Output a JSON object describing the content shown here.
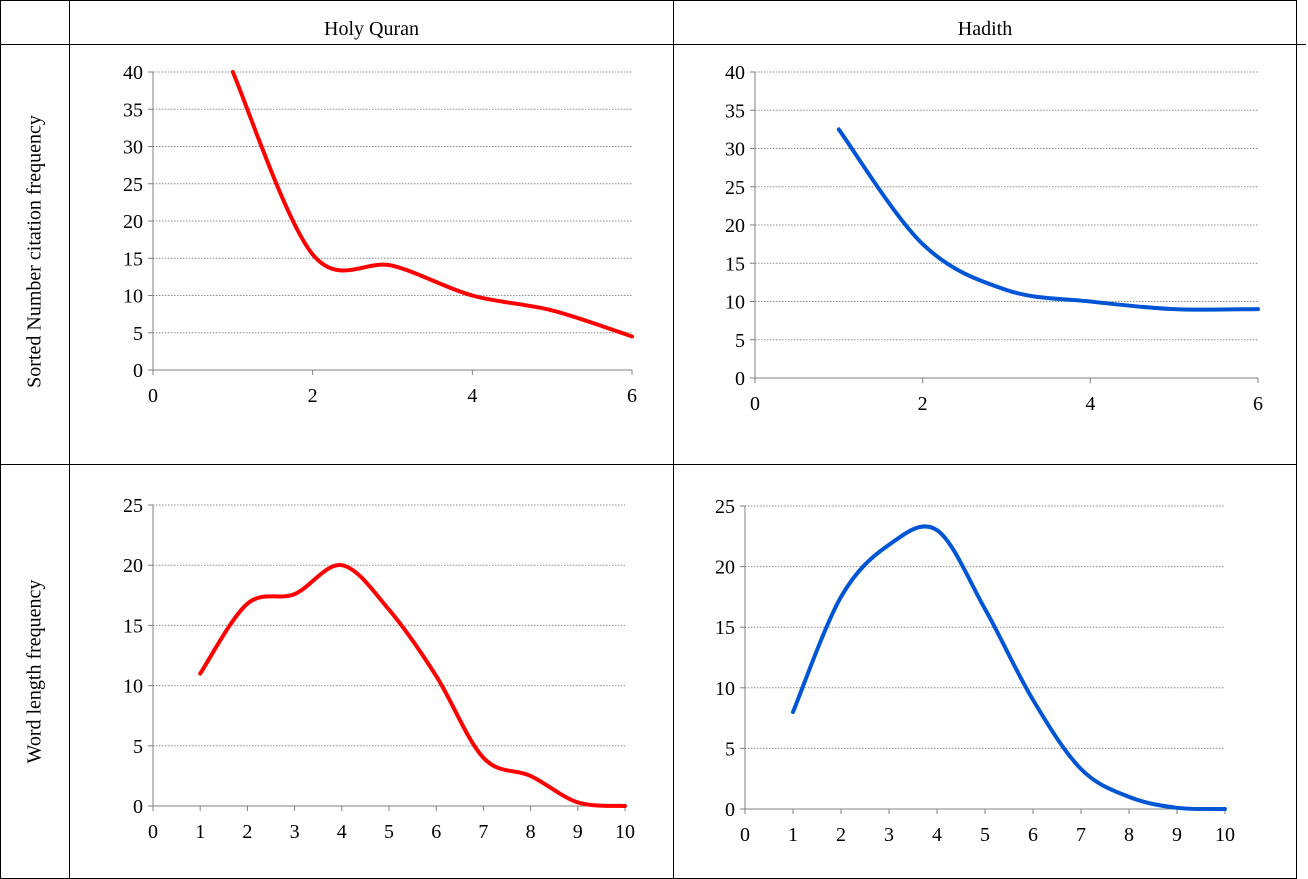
{
  "columns": [
    {
      "label": "Holy Quran"
    },
    {
      "label": "Hadith"
    }
  ],
  "rows": [
    {
      "label": "Sorted Number citation frequency"
    },
    {
      "label": "Word length frequency"
    }
  ],
  "colors": {
    "quran": "#ff0000",
    "hadith": "#0055d4",
    "grid": "#8c8c8c"
  },
  "chart_data": [
    {
      "id": "quran-citation",
      "type": "line",
      "title": "",
      "xlabel": "",
      "ylabel": "",
      "xlim": [
        0,
        6
      ],
      "ylim": [
        0,
        40
      ],
      "xticks": [
        0,
        2,
        4,
        6
      ],
      "yticks": [
        0,
        5,
        10,
        15,
        20,
        25,
        30,
        35,
        40
      ],
      "grid": true,
      "legend": "none",
      "series": [
        {
          "color": "#ff0000",
          "x": [
            1,
            2,
            3,
            4,
            5,
            6
          ],
          "y": [
            40,
            15.5,
            14,
            10,
            8,
            4.5
          ]
        }
      ]
    },
    {
      "id": "hadith-citation",
      "type": "line",
      "title": "",
      "xlabel": "",
      "ylabel": "",
      "xlim": [
        0,
        6
      ],
      "ylim": [
        0,
        40
      ],
      "xticks": [
        0,
        2,
        4,
        6
      ],
      "yticks": [
        0,
        5,
        10,
        15,
        20,
        25,
        30,
        35,
        40
      ],
      "grid": true,
      "legend": "none",
      "series": [
        {
          "color": "#0055d4",
          "x": [
            1,
            2,
            3,
            4,
            5,
            6
          ],
          "y": [
            32.5,
            17.5,
            11.5,
            10,
            9,
            9
          ]
        }
      ]
    },
    {
      "id": "quran-wordlength",
      "type": "line",
      "title": "",
      "xlabel": "",
      "ylabel": "",
      "xlim": [
        0,
        10
      ],
      "ylim": [
        0,
        25
      ],
      "xticks": [
        0,
        1,
        2,
        3,
        4,
        5,
        6,
        7,
        8,
        9,
        10
      ],
      "yticks": [
        0,
        5,
        10,
        15,
        20,
        25
      ],
      "grid": true,
      "legend": "none",
      "series": [
        {
          "color": "#ff0000",
          "x": [
            1,
            2,
            3,
            4,
            5,
            6,
            7,
            8,
            9,
            10
          ],
          "y": [
            11,
            16.8,
            17.6,
            20,
            16.3,
            10.8,
            4,
            2.5,
            0.3,
            0
          ]
        }
      ]
    },
    {
      "id": "hadith-wordlength",
      "type": "line",
      "title": "",
      "xlabel": "",
      "ylabel": "",
      "xlim": [
        0,
        10
      ],
      "ylim": [
        0,
        25
      ],
      "xticks": [
        0,
        1,
        2,
        3,
        4,
        5,
        6,
        7,
        8,
        9,
        10
      ],
      "yticks": [
        0,
        5,
        10,
        15,
        20,
        25
      ],
      "grid": true,
      "legend": "none",
      "series": [
        {
          "color": "#0055d4",
          "x": [
            1,
            2,
            3,
            4,
            5,
            6,
            7,
            8,
            9,
            10
          ],
          "y": [
            8,
            17.5,
            21.8,
            23,
            16.5,
            9,
            3.3,
            1,
            0.1,
            0
          ]
        }
      ]
    }
  ]
}
